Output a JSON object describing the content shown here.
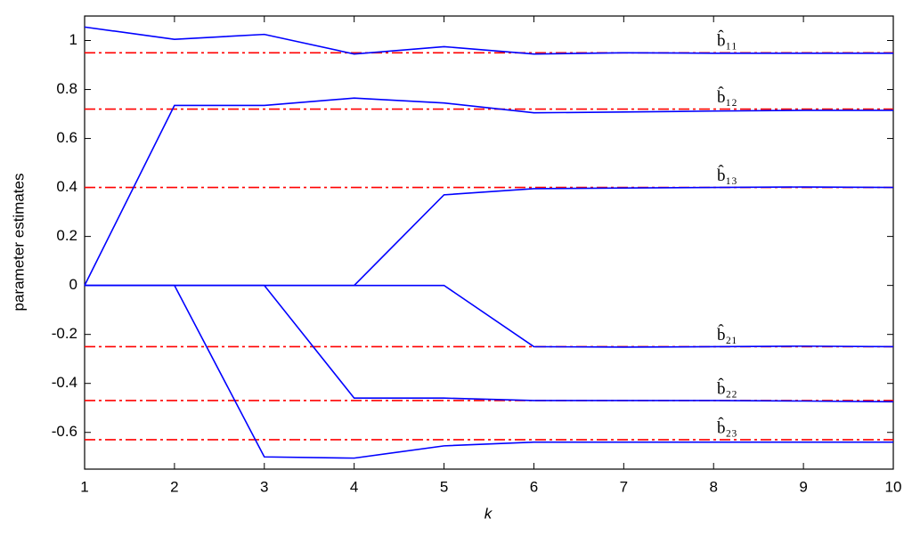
{
  "chart_data": {
    "type": "line",
    "x_label": "k",
    "y_label": "parameter estimates",
    "x": [
      1,
      2,
      3,
      4,
      5,
      6,
      7,
      8,
      9,
      10
    ],
    "xlim": [
      1,
      10
    ],
    "xticks": [
      1,
      2,
      3,
      4,
      5,
      6,
      7,
      8,
      9,
      10
    ],
    "ylim": [
      -0.75,
      1.1
    ],
    "yticks": [
      -0.6,
      -0.4,
      -0.2,
      0,
      0.2,
      0.4,
      0.6,
      0.8,
      1
    ],
    "grid": false,
    "series": [
      {
        "color": "#0000ff",
        "values": [
          1.055,
          1.005,
          1.025,
          0.945,
          0.975,
          0.945,
          0.95,
          0.948,
          0.948,
          0.948
        ]
      },
      {
        "color": "#0000ff",
        "values": [
          0,
          0.735,
          0.735,
          0.765,
          0.745,
          0.705,
          0.708,
          0.712,
          0.715,
          0.715
        ]
      },
      {
        "color": "#0000ff",
        "values": [
          0,
          0,
          0,
          0,
          0.37,
          0.395,
          0.398,
          0.4,
          0.402,
          0.4
        ]
      },
      {
        "color": "#0000ff",
        "values": [
          0,
          0,
          0,
          0,
          0,
          -0.25,
          -0.252,
          -0.25,
          -0.248,
          -0.25
        ]
      },
      {
        "color": "#0000ff",
        "values": [
          0,
          0,
          0,
          -0.46,
          -0.46,
          -0.47,
          -0.47,
          -0.47,
          -0.472,
          -0.475
        ]
      },
      {
        "color": "#0000ff",
        "values": [
          0,
          0,
          -0.7,
          -0.705,
          -0.655,
          -0.64,
          -0.64,
          -0.64,
          -0.64,
          -0.64
        ]
      }
    ],
    "reference_lines": [
      {
        "value": 0.95,
        "label": "b̂₁₁",
        "color": "#ff0000"
      },
      {
        "value": 0.72,
        "label": "b̂₁₂",
        "color": "#ff0000"
      },
      {
        "value": 0.4,
        "label": "b̂₁₃",
        "color": "#ff0000"
      },
      {
        "value": -0.25,
        "label": "b̂₂₁",
        "color": "#ff0000"
      },
      {
        "value": -0.47,
        "label": "b̂₂₂",
        "color": "#ff0000"
      },
      {
        "value": -0.63,
        "label": "b̂₂₃",
        "color": "#ff0000"
      }
    ]
  }
}
